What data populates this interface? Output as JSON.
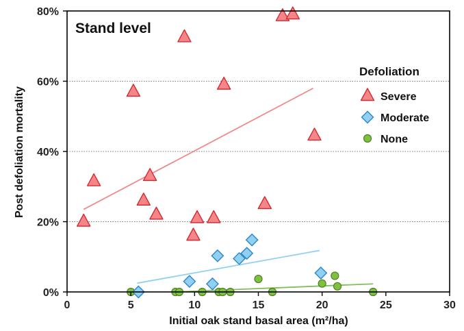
{
  "chart_data": {
    "type": "scatter",
    "panel_label": "Stand level",
    "xlabel": "Initial oak stand basal area (m²/ha)",
    "ylabel": "Post defoliation mortality",
    "xlim": [
      0,
      30
    ],
    "ylim": [
      0,
      80
    ],
    "x_ticks": [
      "0",
      "5",
      "10",
      "15",
      "20",
      "25",
      "30"
    ],
    "y_ticks": [
      "0%",
      "20%",
      "40%",
      "60%",
      "80%"
    ],
    "grid": "horizontal dotted",
    "legend_title": "Defoliation",
    "legend_position": "right",
    "series": [
      {
        "name": "Severe",
        "marker": "triangle",
        "color": "#f4868a",
        "edge": "#d62b30",
        "points": [
          [
            1.3,
            20
          ],
          [
            2.1,
            31.5
          ],
          [
            5.2,
            57
          ],
          [
            6.0,
            26
          ],
          [
            6.5,
            33
          ],
          [
            7.0,
            22
          ],
          [
            9.2,
            72.5
          ],
          [
            9.9,
            16
          ],
          [
            10.2,
            21
          ],
          [
            11.5,
            21
          ],
          [
            12.3,
            59
          ],
          [
            15.5,
            25
          ],
          [
            16.9,
            78.5
          ],
          [
            17.7,
            79
          ],
          [
            19.4,
            44.5
          ]
        ],
        "trend": [
          [
            1.3,
            23.5
          ],
          [
            19.3,
            58
          ]
        ],
        "trend_color": "#f08a8a"
      },
      {
        "name": "Moderate",
        "marker": "diamond",
        "color": "#8fd0f3",
        "edge": "#2f86c4",
        "points": [
          [
            5.6,
            0
          ],
          [
            9.6,
            3
          ],
          [
            11.4,
            2.3
          ],
          [
            11.8,
            10.3
          ],
          [
            13.5,
            9.5
          ],
          [
            14.1,
            11
          ],
          [
            14.5,
            14.8
          ],
          [
            19.9,
            5.4
          ]
        ],
        "trend": [
          [
            5.5,
            2.5
          ],
          [
            19.8,
            11.8
          ]
        ],
        "trend_color": "#8fd0f3"
      },
      {
        "name": "None",
        "marker": "circle",
        "color": "#80c040",
        "edge": "#4f7f22",
        "points": [
          [
            5.0,
            0
          ],
          [
            8.5,
            0
          ],
          [
            8.8,
            0
          ],
          [
            10.6,
            0
          ],
          [
            11.9,
            0
          ],
          [
            12.2,
            0
          ],
          [
            12.8,
            0
          ],
          [
            15.0,
            3.7
          ],
          [
            16.1,
            0
          ],
          [
            20.0,
            2.4
          ],
          [
            21.0,
            4.6
          ],
          [
            21.2,
            1.6
          ],
          [
            24.0,
            0
          ]
        ],
        "trend": [
          [
            8.5,
            0
          ],
          [
            24.0,
            2.3
          ]
        ],
        "trend_color": "#7fc05a"
      }
    ]
  }
}
